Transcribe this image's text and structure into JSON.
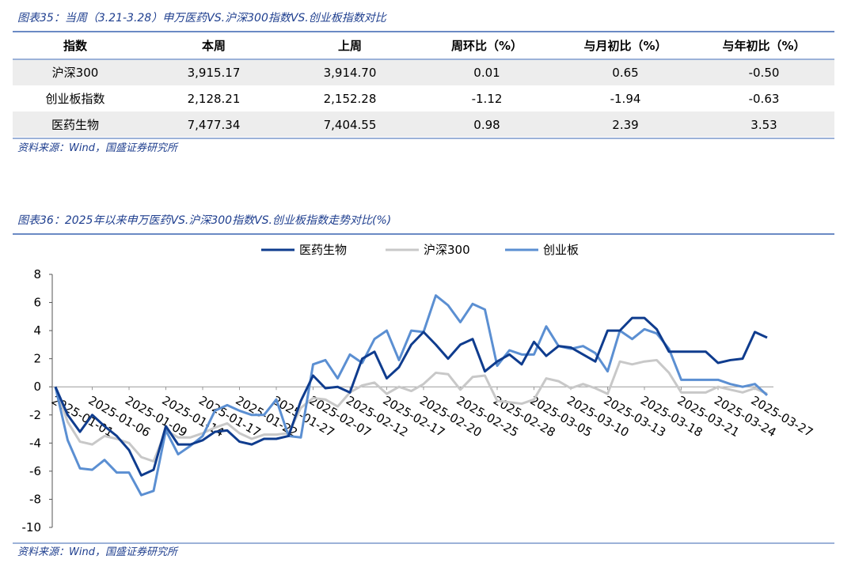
{
  "table_section": {
    "title": "图表35：当周（3.21-3.28）申万医药VS.沪深300指数VS.创业板指数对比",
    "header": [
      "指数",
      "本周",
      "上周",
      "周环比（%）",
      "与月初比（%）",
      "与年初比（%）"
    ],
    "rows": [
      [
        "沪深300",
        "3,915.17",
        "3,914.70",
        "0.01",
        "0.65",
        "-0.50"
      ],
      [
        "创业板指数",
        "2,128.21",
        "2,152.28",
        "-1.12",
        "-1.94",
        "-0.63"
      ],
      [
        "医药生物",
        "7,477.34",
        "7,404.55",
        "0.98",
        "2.39",
        "3.53"
      ]
    ],
    "source": "资料来源：Wind，国盛证券研究所"
  },
  "chart_data": {
    "type": "line",
    "title": "图表36：2025年以来申万医药VS.沪深300指数VS.创业板指数走势对比(%)",
    "source": "资料来源：Wind，国盛证券研究所",
    "categories": [
      "2025-01-01",
      null,
      null,
      "2025-01-06",
      null,
      null,
      "2025-01-09",
      null,
      null,
      "2025-01-14",
      null,
      null,
      "2025-01-17",
      null,
      null,
      "2025-01-22",
      null,
      null,
      "2025-01-27",
      null,
      null,
      "2025-02-07",
      null,
      null,
      "2025-02-12",
      null,
      null,
      "2025-02-17",
      null,
      null,
      "2025-02-20",
      null,
      null,
      "2025-02-25",
      null,
      null,
      "2025-02-28",
      null,
      null,
      "2025-03-05",
      null,
      null,
      "2025-03-10",
      null,
      null,
      "2025-03-13",
      null,
      null,
      "2025-03-18",
      null,
      null,
      "2025-03-21",
      null,
      null,
      "2025-03-24",
      null,
      null,
      "2025-03-27",
      null
    ],
    "ylim": [
      -10,
      8
    ],
    "yticks": [
      -10,
      -8,
      -6,
      -4,
      -2,
      0,
      2,
      4,
      6,
      8
    ],
    "legend": "top",
    "series": [
      {
        "name": "医药生物",
        "color": "#0f3c8e",
        "values": [
          0,
          -2,
          -3.2,
          -2,
          -2.8,
          -3.5,
          -4.5,
          -6.3,
          -5.9,
          -2.8,
          -4.1,
          -4.1,
          -3.8,
          -3.2,
          -3.1,
          -3.9,
          -4.1,
          -3.7,
          -3.7,
          -3.5,
          -1.0,
          0.8,
          -0.1,
          0,
          -0.4,
          2.0,
          2.5,
          0.6,
          1.4,
          3.0,
          3.9,
          3.0,
          2.0,
          3.0,
          3.4,
          1.1,
          1.8,
          2.3,
          1.6,
          3.2,
          2.2,
          2.9,
          2.8,
          2.3,
          1.8,
          4.0,
          4.0,
          4.9,
          4.9,
          4.1,
          2.5,
          2.5,
          2.5,
          2.5,
          1.7,
          1.9,
          2.0,
          3.9,
          3.5
        ]
      },
      {
        "name": "沪深300",
        "color": "#c8c8c8",
        "values": [
          0,
          -2.5,
          -3.9,
          -4.1,
          -3.5,
          -3.7,
          -4.0,
          -5.0,
          -5.3,
          -3.1,
          -3.6,
          -3.6,
          -3.3,
          -2.9,
          -2.6,
          -3.3,
          -3.7,
          -3.4,
          -3.4,
          -3.3,
          -1.5,
          -0.8,
          -0.9,
          -1.4,
          -0.4,
          0.1,
          0.3,
          -0.5,
          0.0,
          -0.3,
          0.2,
          1.0,
          0.9,
          -0.2,
          0.7,
          0.8,
          -1.0,
          -1.1,
          -1.2,
          -0.9,
          0.6,
          0.4,
          -0.1,
          0.2,
          -0.1,
          -0.5,
          1.8,
          1.6,
          1.8,
          1.9,
          1.0,
          -0.4,
          -0.4,
          -0.4,
          0.0,
          -0.2,
          -0.4,
          -0.1,
          -0.5
        ]
      },
      {
        "name": "创业板",
        "color": "#5b8fd2",
        "values": [
          0,
          -3.8,
          -5.8,
          -5.9,
          -5.2,
          -6.1,
          -6.1,
          -7.7,
          -7.4,
          -3.1,
          -4.8,
          -4.2,
          -3.5,
          -1.7,
          -1.3,
          -1.7,
          -2.0,
          -2.0,
          -0.9,
          -3.5,
          -3.6,
          1.6,
          1.9,
          0.6,
          2.3,
          1.7,
          3.4,
          4.0,
          1.9,
          4.0,
          3.9,
          6.5,
          5.8,
          4.6,
          5.9,
          5.5,
          1.5,
          2.6,
          2.3,
          2.3,
          4.3,
          2.9,
          2.7,
          2.9,
          2.4,
          1.1,
          4.0,
          3.4,
          4.1,
          3.8,
          2.7,
          0.5,
          0.5,
          0.5,
          0.5,
          0.2,
          0.0,
          0.2,
          -0.6
        ]
      }
    ]
  }
}
